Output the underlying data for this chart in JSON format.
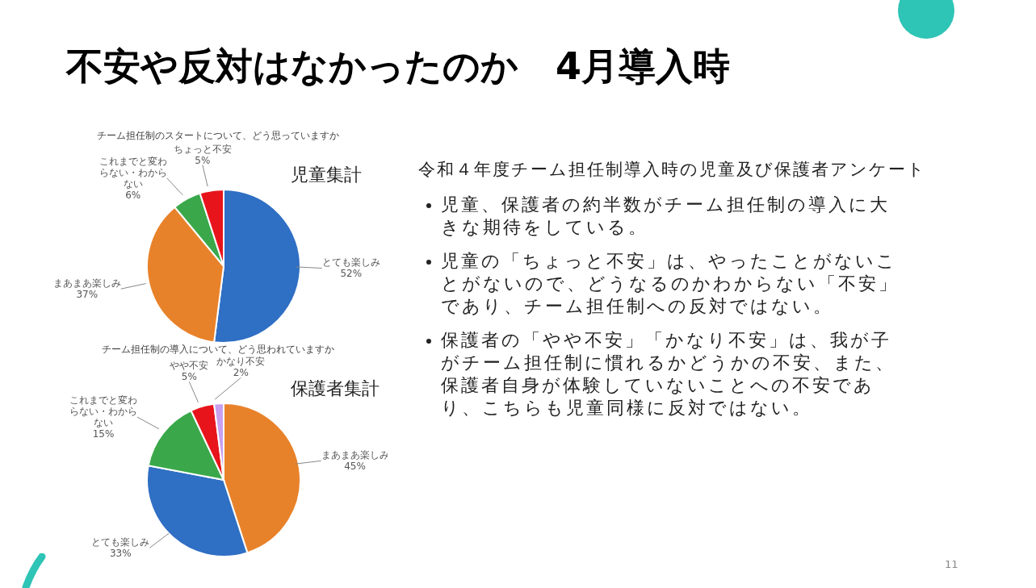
{
  "chart_data": [
    {
      "type": "pie",
      "title": "チーム担任制のスタートについて、どう思っていますか",
      "subtitle": "児童集計",
      "categories": [
        "とても楽しみ",
        "まあまあ楽しみ",
        "これまでと変わらない・わからない",
        "ちょっと不安"
      ],
      "values": [
        52,
        37,
        6,
        5
      ],
      "value_labels": [
        "52%",
        "37%",
        "6%",
        "5%"
      ],
      "colors": [
        "#2f6fc4",
        "#e8822a",
        "#3aa84a",
        "#e8141c"
      ],
      "legend": false
    },
    {
      "type": "pie",
      "title": "チーム担任制の導入について、どう思われていますか",
      "subtitle": "保護者集計",
      "categories": [
        "まあまあ楽しみ",
        "とても楽しみ",
        "これまでと変わらない・わからない",
        "やや不安",
        "かなり不安"
      ],
      "values": [
        45,
        33,
        15,
        5,
        2
      ],
      "value_labels": [
        "45%",
        "33%",
        "15%",
        "5%",
        "2%"
      ],
      "colors": [
        "#e8822a",
        "#2f6fc4",
        "#3aa84a",
        "#e8141c",
        "#c9a0f0"
      ],
      "legend": false
    },
    {
      "type": "other",
      "title": "不安や反対はなかったのか　4月導入時",
      "subtitle": "令和４年度チーム担任制導入時の児童及び保護者アンケート",
      "annotations": [
        "児童、保護者の約半数がチーム担任制の導入に大きな期待をしている。",
        "児童の「ちょっと不安」は、やったことがないことがないので、どうなるのかわからない「不安」であり、チーム担任制への反対ではない。",
        "保護者の「やや不安」「かなり不安」は、我が子がチーム担任制に慣れるかどうかの不安、また、保護者自身が体験していないことへの不安であり、こちらも児童同様に反対ではない。",
        "11"
      ]
    }
  ]
}
